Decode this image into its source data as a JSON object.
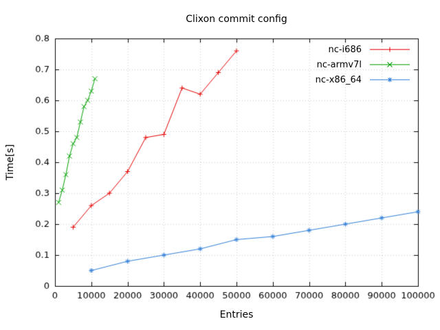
{
  "chart_data": {
    "type": "line",
    "title": "Clixon commit config",
    "xlabel": "Entries",
    "ylabel": "Time[s]",
    "xlim": [
      0,
      100000
    ],
    "ylim": [
      0,
      0.8
    ],
    "xticks": [
      0,
      10000,
      20000,
      30000,
      40000,
      50000,
      60000,
      70000,
      80000,
      90000,
      100000
    ],
    "xtick_labels": [
      "0",
      "10000",
      "20000",
      "30000",
      "40000",
      "50000",
      "60000",
      "70000",
      "80000",
      "90000",
      "100000"
    ],
    "yticks": [
      0,
      0.1,
      0.2,
      0.3,
      0.4,
      0.5,
      0.6,
      0.7,
      0.8
    ],
    "ytick_labels": [
      "0",
      "0.1",
      "0.2",
      "0.3",
      "0.4",
      "0.5",
      "0.6",
      "0.7",
      "0.8"
    ],
    "grid": true,
    "grid_color": "#c8c8c8",
    "border_color": "#000000",
    "legend_position": "top-right-inside",
    "series": [
      {
        "name": "nc-i686",
        "color": "#e60000",
        "marker": "plus",
        "x": [
          5000,
          10000,
          15000,
          20000,
          25000,
          30000,
          35000,
          40000,
          45000,
          50000
        ],
        "y": [
          0.19,
          0.26,
          0.3,
          0.37,
          0.48,
          0.49,
          0.64,
          0.62,
          0.69,
          0.76
        ]
      },
      {
        "name": "nc-armv7l",
        "color": "#00a000",
        "marker": "x",
        "x": [
          1000,
          2000,
          3000,
          4000,
          5000,
          6000,
          7000,
          8000,
          9000,
          10000,
          11000
        ],
        "y": [
          0.27,
          0.31,
          0.36,
          0.42,
          0.46,
          0.48,
          0.53,
          0.58,
          0.6,
          0.63,
          0.67
        ]
      },
      {
        "name": "nc-x86_64",
        "color": "#2f7ed8",
        "marker": "asterisk",
        "x": [
          10000,
          20000,
          30000,
          40000,
          50000,
          60000,
          70000,
          80000,
          90000,
          100000
        ],
        "y": [
          0.05,
          0.08,
          0.1,
          0.12,
          0.15,
          0.16,
          0.18,
          0.2,
          0.22,
          0.24
        ]
      }
    ]
  }
}
